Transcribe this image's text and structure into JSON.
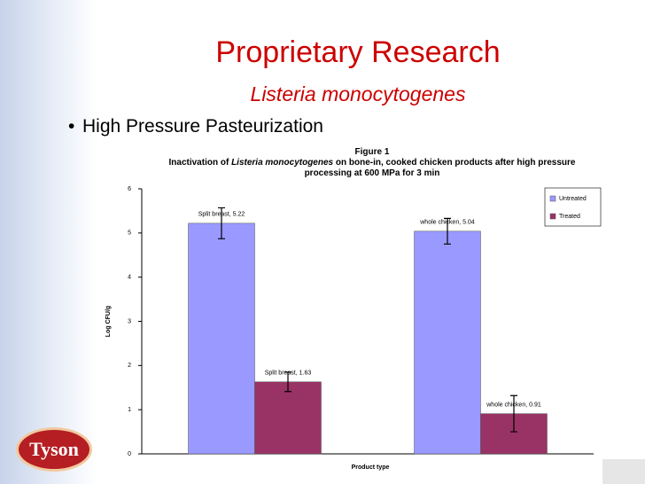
{
  "slide": {
    "title": "Proprietary Research",
    "subtitle": "Listeria monocytogenes",
    "bullet": "High Pressure Pasteurization",
    "logo": "Tyson"
  },
  "chart_data": {
    "type": "bar",
    "title": "Figure 1",
    "subtitle": [
      "Inactivation of ",
      "Listeria monocytogenes",
      " on bone-in, cooked chicken products after high pressure processing at 600 MPa for 3 min"
    ],
    "x_label": "Product type",
    "y_label": "Log CFU/g",
    "categories": [
      null,
      null
    ],
    "series": [
      {
        "name": "Untreated",
        "color": "#9999ff",
        "values": [
          5.22,
          5.04
        ],
        "errors": [
          0.35,
          0.29
        ],
        "value_labels": [
          "Split breast, 5.22",
          "whole chicken, 5.04"
        ]
      },
      {
        "name": "Treated",
        "color": "#993366",
        "values": [
          1.63,
          0.91
        ],
        "errors": [
          0.22,
          0.41
        ],
        "value_labels": [
          "Split breast, 1.63",
          "whole chicken, 0.91"
        ]
      }
    ],
    "ylim": [
      0,
      6
    ],
    "yticks": [
      0,
      1,
      2,
      3,
      4,
      5,
      6
    ],
    "grid": false,
    "legend": "top-right"
  }
}
